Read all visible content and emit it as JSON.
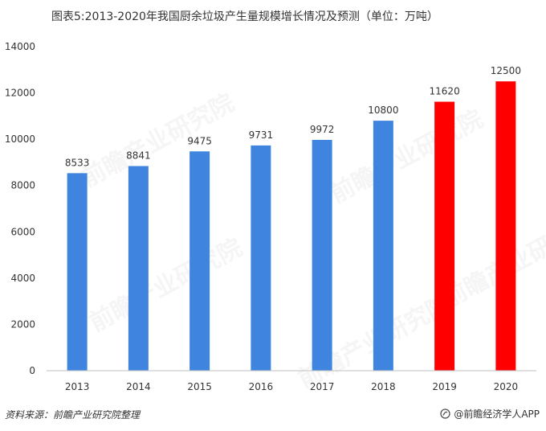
{
  "title": "图表5:2013-2020年我国厨余垃圾产生量规模增长情况及预测（单位：万吨）",
  "source": "资料来源：前瞻产业研究院整理",
  "brand": "@前瞻经济学人APP",
  "colors": {
    "actual": "#3F85E0",
    "forecast": "#FF0000",
    "axis": "#BFBFBF",
    "text": "#333333"
  },
  "chart_data": {
    "type": "bar",
    "categories": [
      "2013",
      "2014",
      "2015",
      "2016",
      "2017",
      "2018",
      "2019",
      "2020"
    ],
    "values": [
      8533,
      8841,
      9475,
      9731,
      9972,
      10800,
      11620,
      12500
    ],
    "forecast_from_index": 6,
    "ylim": [
      0,
      14000
    ],
    "yticks": [
      0,
      2000,
      4000,
      6000,
      8000,
      10000,
      12000,
      14000
    ],
    "grid": false
  }
}
